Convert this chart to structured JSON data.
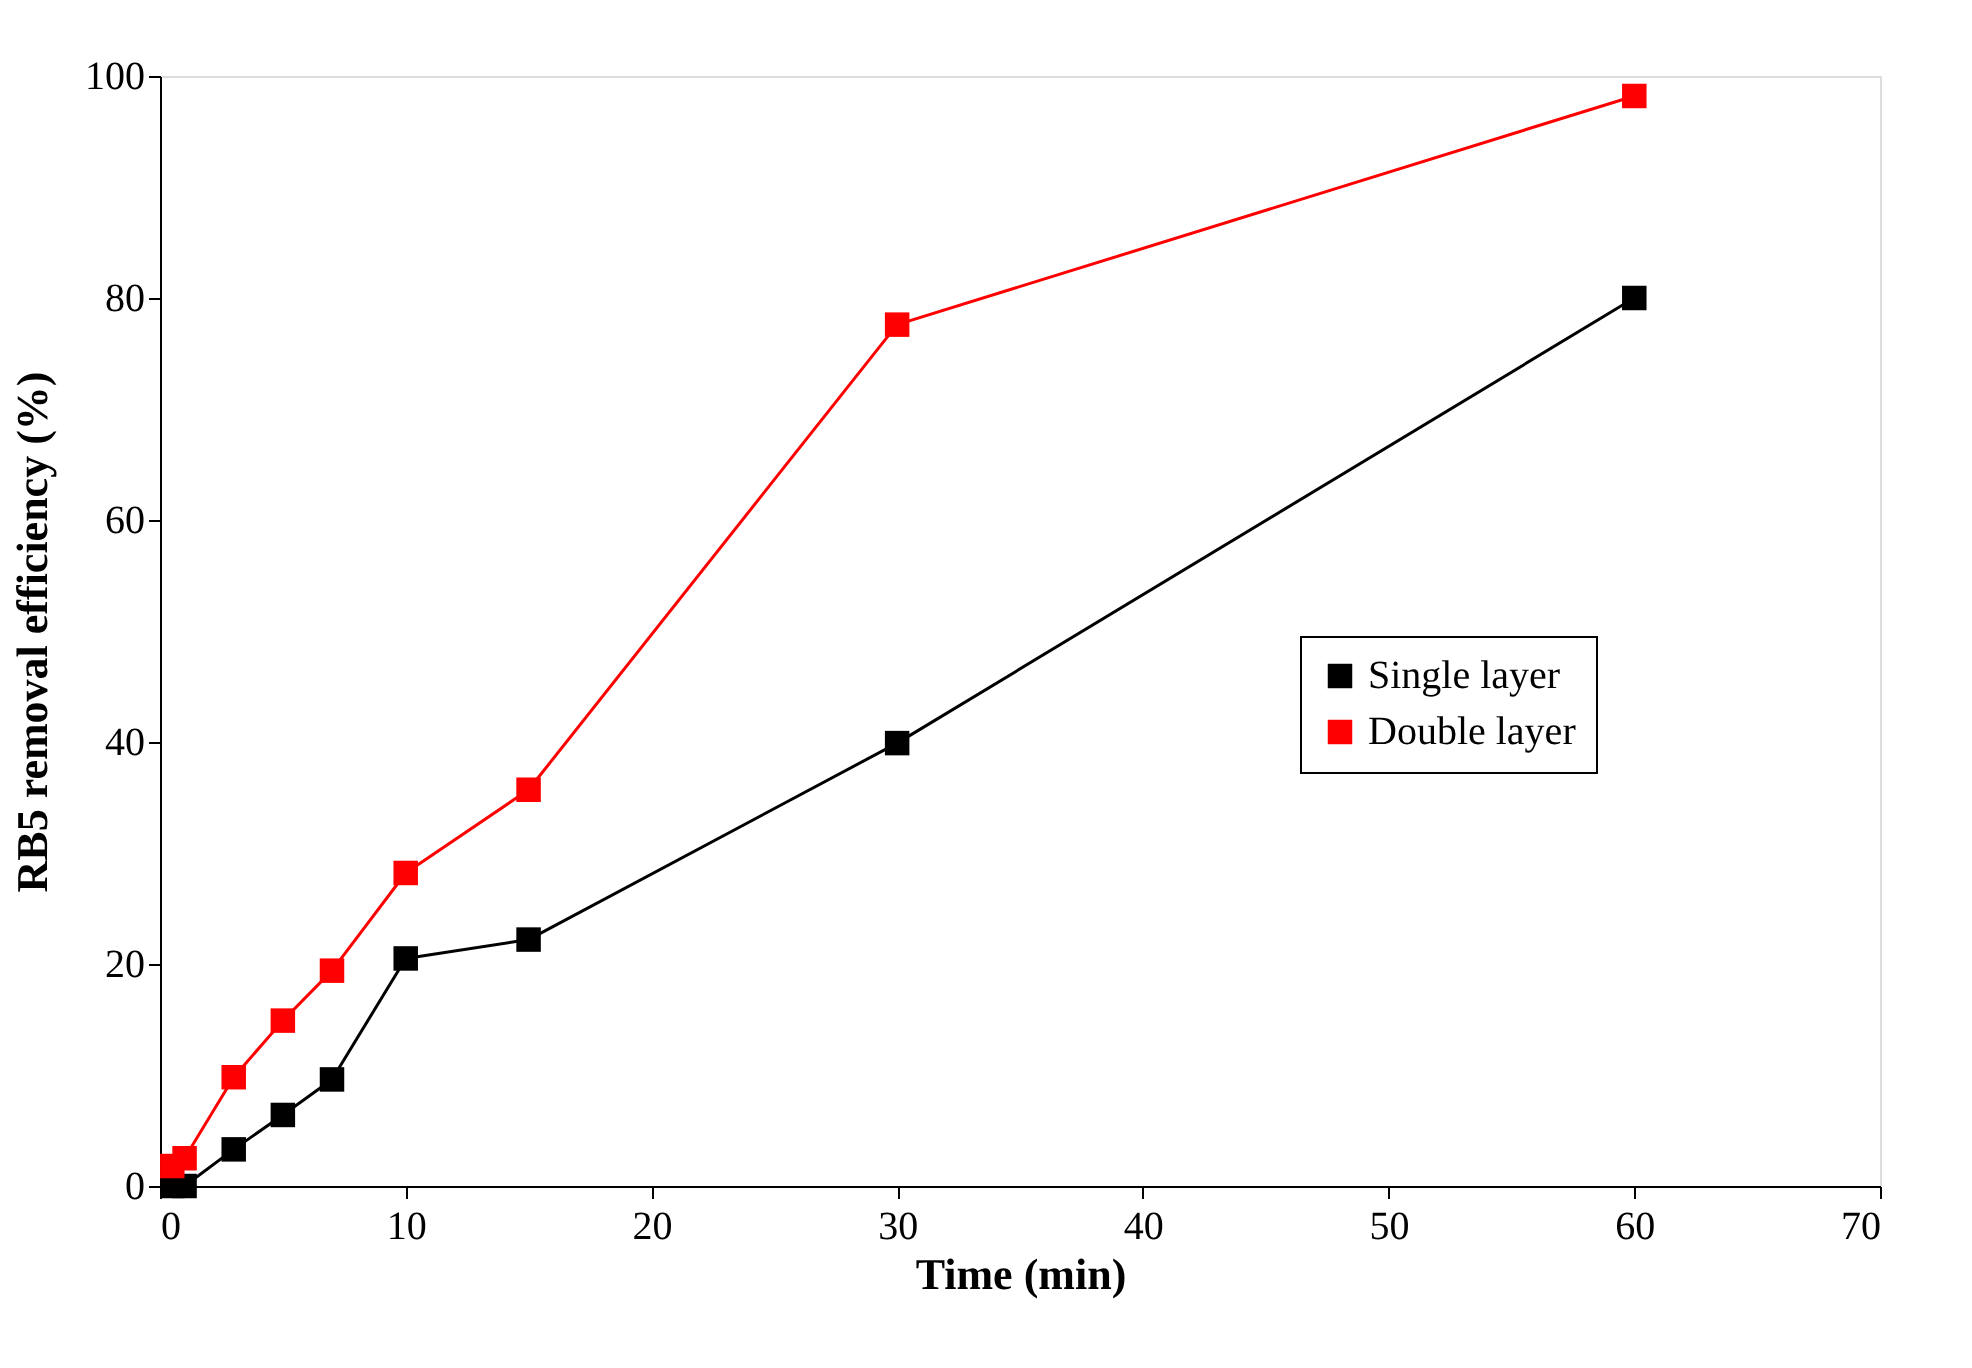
{
  "chart_data": {
    "type": "line",
    "xlabel": "Time (min)",
    "ylabel": "RB5 removal efficiency (%)",
    "x": [
      0.5,
      1,
      3,
      5,
      7,
      10,
      15,
      30,
      60
    ],
    "series": [
      {
        "name": "Single layer",
        "color": "#000000",
        "values": [
          0,
          0,
          3.3,
          6.4,
          9.6,
          20.5,
          22.2,
          39.9,
          80
        ]
      },
      {
        "name": "Double layer",
        "color": "#ff0000",
        "values": [
          1.8,
          2.5,
          9.8,
          14.9,
          19.4,
          28.2,
          35.7,
          77.6,
          98.2
        ]
      }
    ],
    "xlim": [
      0,
      70
    ],
    "xticks": [
      0,
      10,
      20,
      30,
      40,
      50,
      60,
      70
    ],
    "ylim": [
      0,
      100
    ],
    "yticks": [
      0,
      20,
      40,
      60,
      80,
      100
    ],
    "grid": false,
    "legend": "right",
    "marker": "square",
    "line_style": "solid"
  }
}
